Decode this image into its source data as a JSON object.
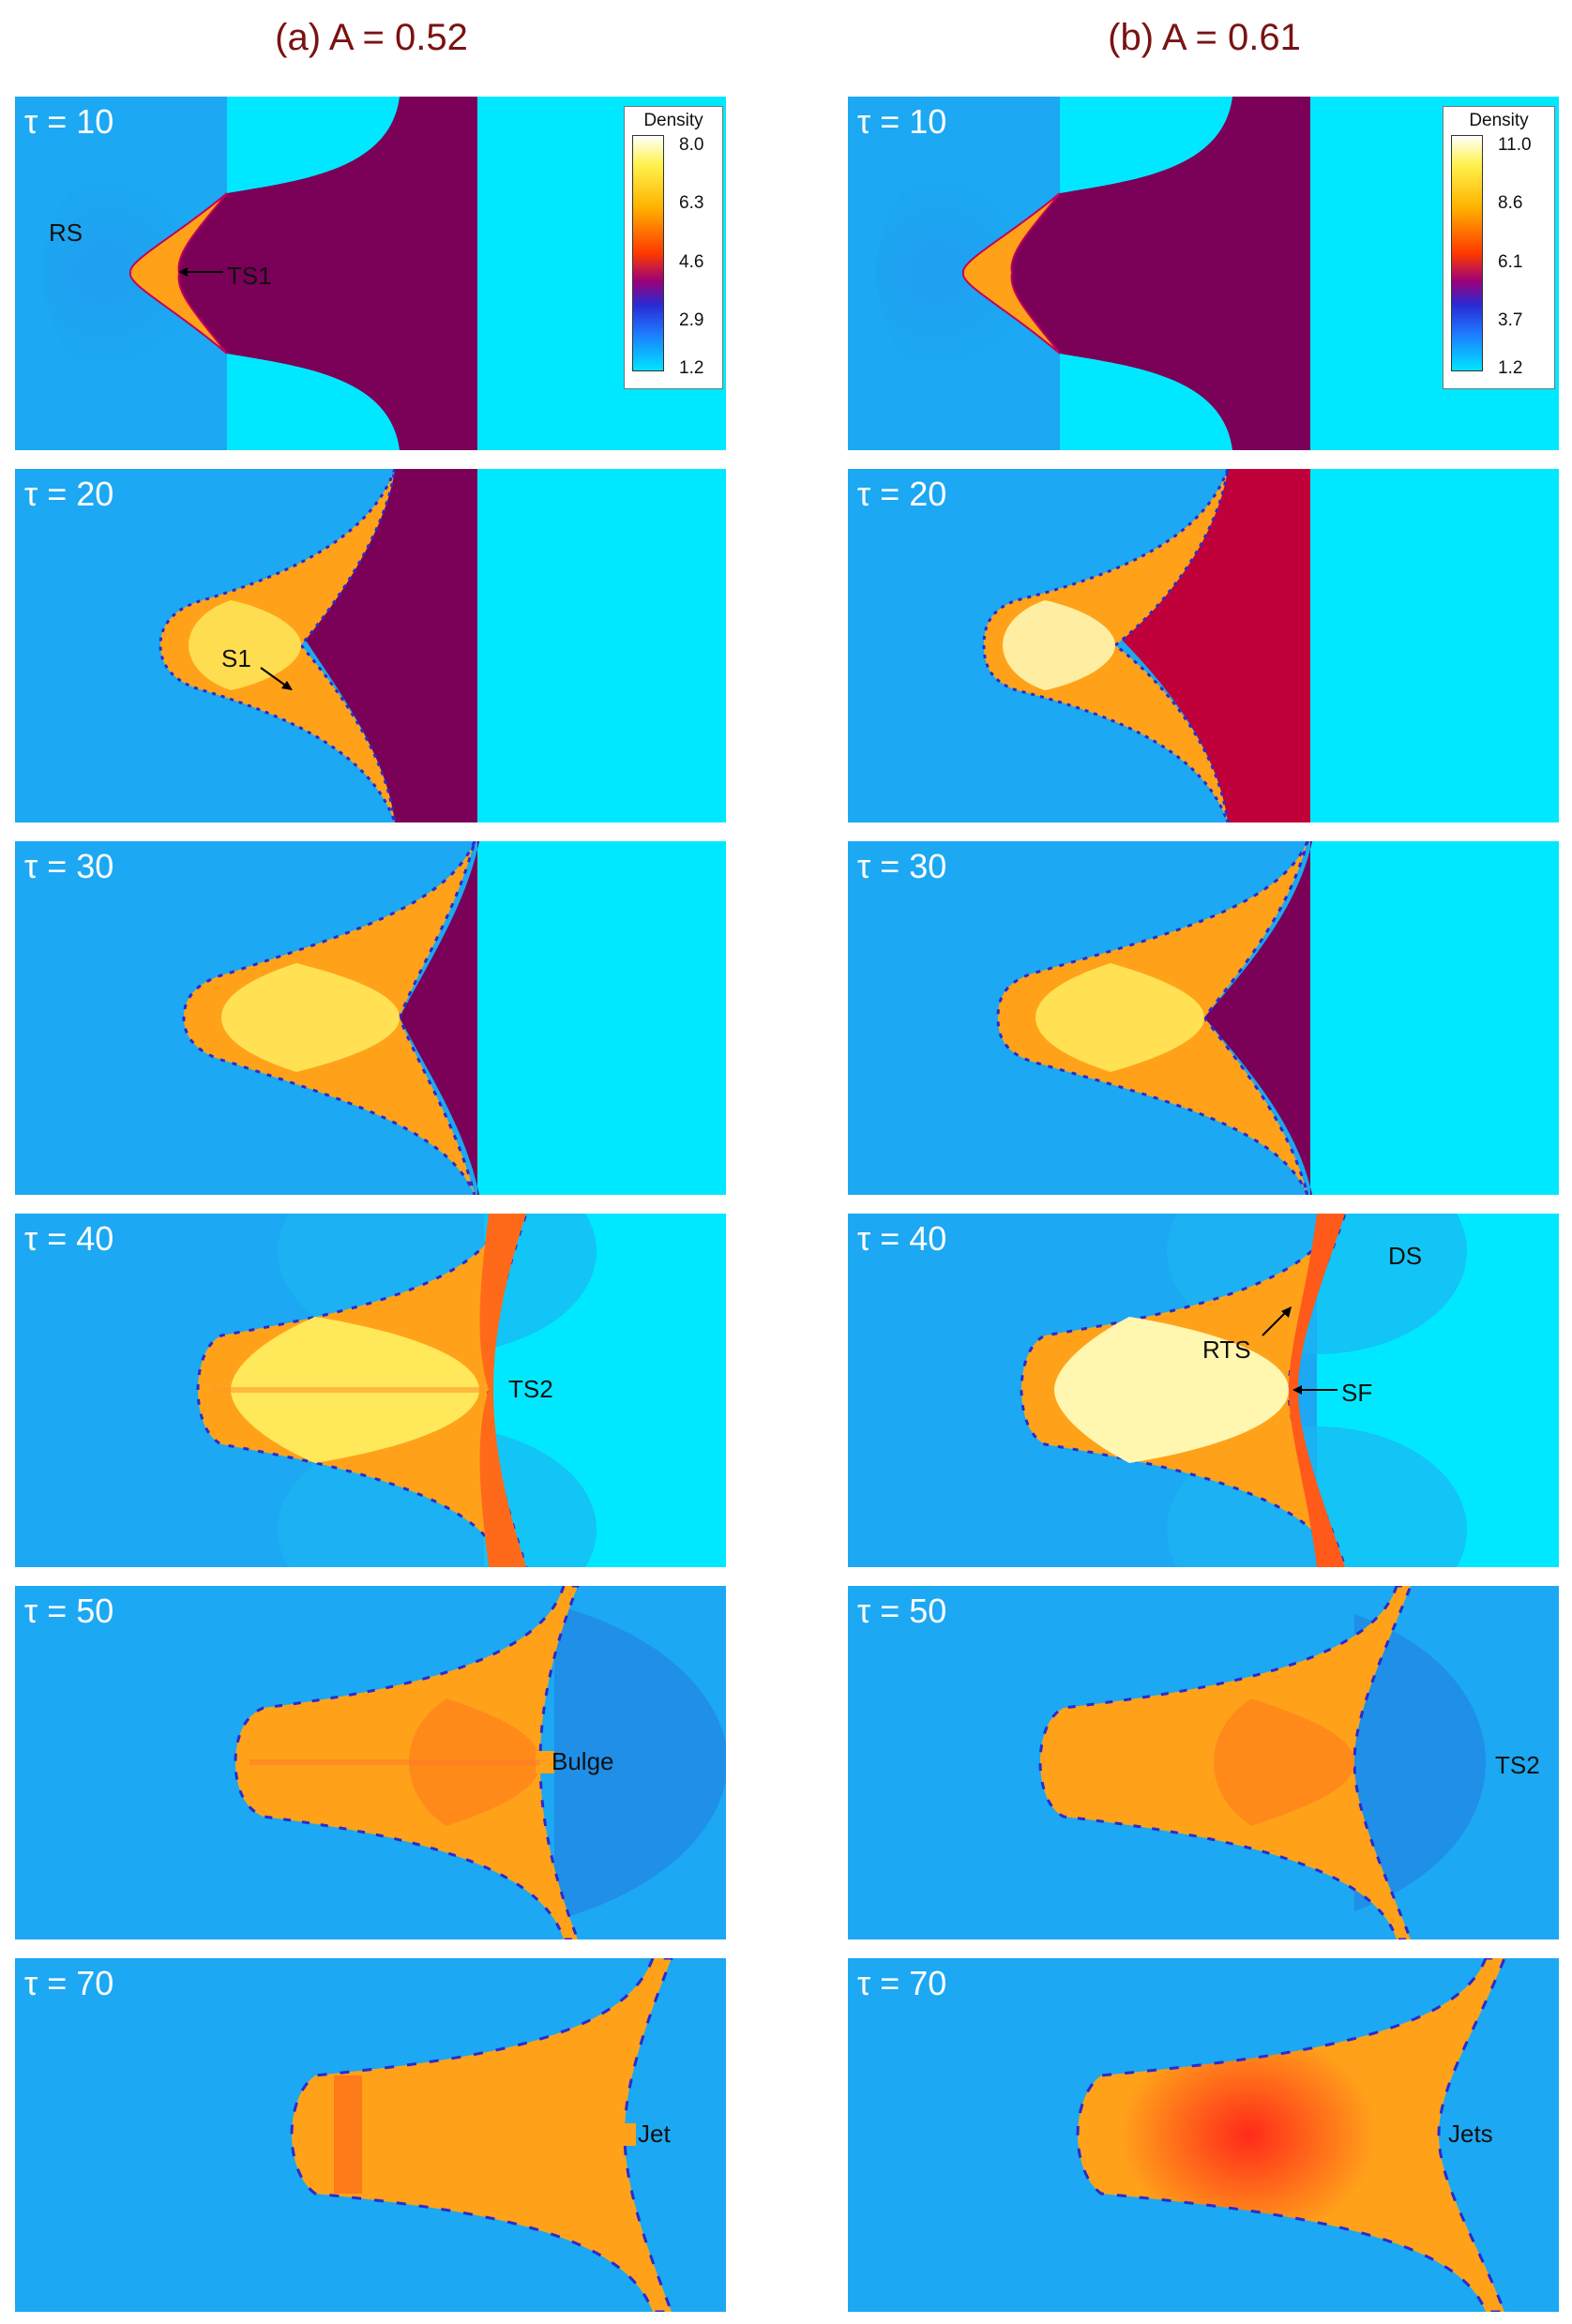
{
  "columns": [
    {
      "title": "(a) A = 0.52"
    },
    {
      "title": "(b) A = 0.61"
    }
  ],
  "rows": [
    {
      "tau": "τ = 10"
    },
    {
      "tau": "τ = 20"
    },
    {
      "tau": "τ = 30"
    },
    {
      "tau": "τ = 40"
    },
    {
      "tau": "τ = 50"
    },
    {
      "tau": "τ = 70"
    }
  ],
  "colorbars": [
    {
      "title": "Density",
      "ticks": [
        "8.0",
        "6.3",
        "4.6",
        "2.9",
        "1.2"
      ]
    },
    {
      "title": "Density",
      "ticks": [
        "11.0",
        "8.6",
        "6.1",
        "3.7",
        "1.2"
      ]
    }
  ],
  "annotations": {
    "rs": "RS",
    "ts1": "TS1",
    "s1": "S1",
    "ts2_a": "TS2",
    "ds": "DS",
    "rts": "RTS",
    "sf": "SF",
    "bulge": "Bulge",
    "ts2_b": "TS2",
    "jet": "Jet",
    "jets": "Jets"
  },
  "colors": {
    "background_blue": "#1ca8f2",
    "ambient_cyan": "#00e8ff",
    "heavy_gas_purple": "#7a0058",
    "heavy_gas_crimson": "#c0003a",
    "shocked_orange": "#ffa21a",
    "compressed_yellow": "#ffe85a",
    "title_red": "#7a1212"
  }
}
